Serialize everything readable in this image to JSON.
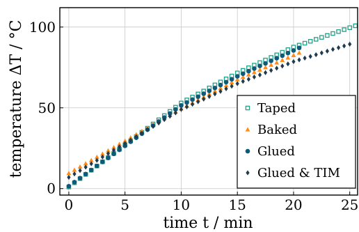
{
  "chart_data": {
    "type": "scatter",
    "xlabel": "time t / min",
    "ylabel": "temperature ΔT / °C",
    "xlim": [
      -0.8,
      25.7
    ],
    "ylim": [
      -4,
      112
    ],
    "xticks": [
      "0",
      "5",
      "10",
      "15",
      "20",
      "25"
    ],
    "yticks": [
      "0",
      "50",
      "100"
    ],
    "grid": true,
    "legend_position": "bottom-right",
    "series": [
      {
        "name": "Taped",
        "marker": "square-open",
        "color": "#1fa187",
        "x": [
          0,
          0.5,
          1,
          1.5,
          2,
          2.5,
          3,
          3.5,
          4,
          4.5,
          5,
          5.5,
          6,
          6.5,
          7,
          7.5,
          8,
          8.5,
          9,
          9.5,
          10,
          10.5,
          11,
          11.5,
          12,
          12.5,
          13,
          13.5,
          14,
          14.5,
          15,
          15.5,
          16,
          16.5,
          17,
          17.5,
          18,
          18.5,
          19,
          19.5,
          20,
          20.5,
          21,
          21.5,
          22,
          22.5,
          23,
          23.5,
          24,
          24.5,
          25,
          25.5
        ],
        "y": [
          1,
          3.6,
          6.2,
          8.8,
          11.4,
          14,
          16.6,
          19.2,
          21.8,
          24.4,
          27,
          29.6,
          32.2,
          34.8,
          37.4,
          40,
          42.6,
          45.2,
          47.8,
          50.4,
          53,
          54.9,
          56.7,
          58.6,
          60.4,
          62.3,
          64.2,
          66,
          67.9,
          69.7,
          71.6,
          73.2,
          74.8,
          76.4,
          78,
          79.6,
          81.2,
          82.8,
          84.4,
          86,
          87.6,
          88.8,
          90,
          91.2,
          92.4,
          93.6,
          94.8,
          96,
          97.2,
          98.4,
          99.6,
          100.8
        ]
      },
      {
        "name": "Baked",
        "marker": "triangle",
        "color": "#ff8c1a",
        "x": [
          0,
          0.5,
          1,
          1.5,
          2,
          2.5,
          3,
          3.5,
          4,
          4.5,
          5,
          5.5,
          6,
          6.5,
          7,
          7.5,
          8,
          8.5,
          9,
          9.5,
          10,
          10.5,
          11,
          11.5,
          12,
          12.5,
          13,
          13.5,
          14,
          14.5,
          15,
          15.5,
          16,
          16.5,
          17,
          17.5,
          18,
          18.5,
          19,
          19.5,
          20,
          20.5
        ],
        "y": [
          9.5,
          11.5,
          13.5,
          15.5,
          17.5,
          19.5,
          21.5,
          23.5,
          25.5,
          27.5,
          29.5,
          31.5,
          33.5,
          35.5,
          37.5,
          39.5,
          41.5,
          43.5,
          45.5,
          47.5,
          49.5,
          51.3,
          53.1,
          54.9,
          56.7,
          58.5,
          60.3,
          62.1,
          63.9,
          65.7,
          67.5,
          69,
          70.5,
          72,
          73.5,
          75,
          76.5,
          78,
          79.5,
          81,
          82.5,
          84
        ]
      },
      {
        "name": "Glued",
        "marker": "circle",
        "color": "#0f5a78",
        "x": [
          0,
          0.5,
          1,
          1.5,
          2,
          2.5,
          3,
          3.5,
          4,
          4.5,
          5,
          5.5,
          6,
          6.5,
          7,
          7.5,
          8,
          8.5,
          9,
          9.5,
          10,
          10.5,
          11,
          11.5,
          12,
          12.5,
          13,
          13.5,
          14,
          14.5,
          15,
          15.5,
          16,
          16.5,
          17,
          17.5,
          18,
          18.5,
          19,
          19.5,
          20,
          20.5
        ],
        "y": [
          1.5,
          4,
          6.5,
          9,
          11.5,
          14,
          16.5,
          19,
          21.5,
          24,
          26.5,
          29,
          31.5,
          34,
          36.5,
          39,
          41.5,
          44,
          46.5,
          49,
          51.5,
          53.3,
          55.1,
          56.9,
          58.7,
          60.5,
          62.3,
          64.1,
          65.9,
          67.7,
          69.5,
          71.1,
          72.7,
          74.3,
          75.9,
          77.5,
          79.1,
          80.7,
          82.3,
          83.9,
          85.5,
          87.1
        ]
      },
      {
        "name": "Glued & TIM",
        "marker": "diamond",
        "color": "#1f3b4d",
        "x": [
          0,
          0.5,
          1,
          1.5,
          2,
          2.5,
          3,
          3.5,
          4,
          4.5,
          5,
          5.5,
          6,
          6.5,
          7,
          7.5,
          8,
          8.5,
          9,
          9.5,
          10,
          10.5,
          11,
          11.5,
          12,
          12.5,
          13,
          13.5,
          14,
          14.5,
          15,
          15.5,
          16,
          16.5,
          17,
          17.5,
          18,
          18.5,
          19,
          19.5,
          20,
          20.5,
          21,
          21.5,
          22,
          22.5,
          23,
          23.5,
          24,
          24.5,
          25
        ],
        "y": [
          7,
          9.1,
          11.2,
          13.3,
          15.4,
          17.5,
          19.6,
          21.7,
          23.8,
          25.9,
          28,
          30.1,
          32.2,
          34.3,
          36.4,
          38.5,
          40.6,
          42.7,
          44.8,
          46.9,
          49,
          50.6,
          52.2,
          53.8,
          55.4,
          57,
          58.6,
          60.2,
          61.8,
          63.4,
          65,
          66.4,
          67.7,
          69.1,
          70.4,
          71.8,
          73.2,
          74.5,
          75.9,
          77.2,
          78.6,
          79.7,
          80.8,
          81.8,
          82.9,
          84,
          85.1,
          86.2,
          87.2,
          88.3,
          89.4
        ]
      }
    ]
  }
}
